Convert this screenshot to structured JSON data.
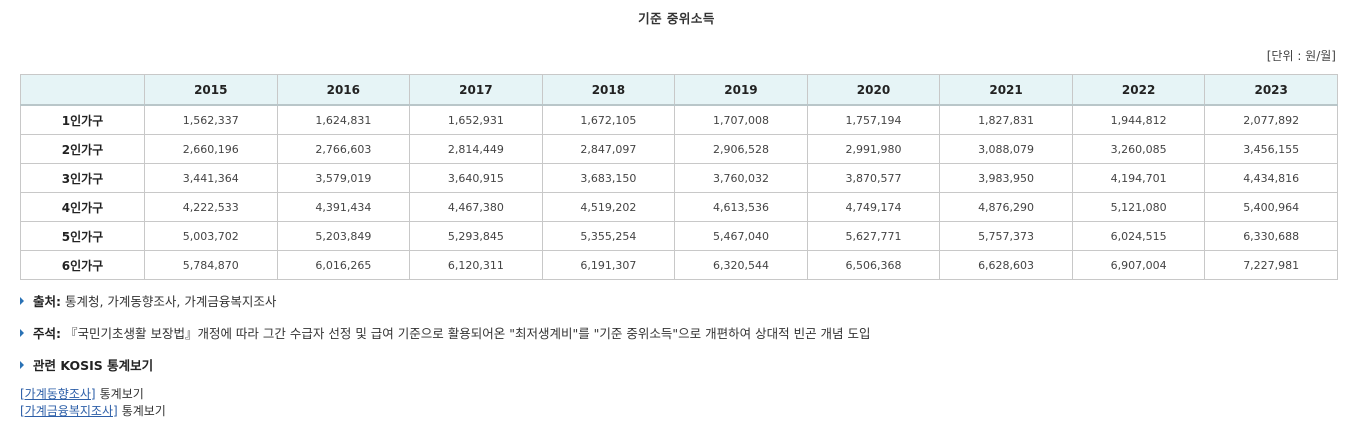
{
  "title": "기준 중위소득",
  "unit": "[단위 : 원/월]",
  "table": {
    "years": [
      "2015",
      "2016",
      "2017",
      "2018",
      "2019",
      "2020",
      "2021",
      "2022",
      "2023"
    ],
    "rows": [
      {
        "label": "1인가구",
        "values": [
          "1,562,337",
          "1,624,831",
          "1,652,931",
          "1,672,105",
          "1,707,008",
          "1,757,194",
          "1,827,831",
          "1,944,812",
          "2,077,892"
        ]
      },
      {
        "label": "2인가구",
        "values": [
          "2,660,196",
          "2,766,603",
          "2,814,449",
          "2,847,097",
          "2,906,528",
          "2,991,980",
          "3,088,079",
          "3,260,085",
          "3,456,155"
        ]
      },
      {
        "label": "3인가구",
        "values": [
          "3,441,364",
          "3,579,019",
          "3,640,915",
          "3,683,150",
          "3,760,032",
          "3,870,577",
          "3,983,950",
          "4,194,701",
          "4,434,816"
        ]
      },
      {
        "label": "4인가구",
        "values": [
          "4,222,533",
          "4,391,434",
          "4,467,380",
          "4,519,202",
          "4,613,536",
          "4,749,174",
          "4,876,290",
          "5,121,080",
          "5,400,964"
        ]
      },
      {
        "label": "5인가구",
        "values": [
          "5,003,702",
          "5,203,849",
          "5,293,845",
          "5,355,254",
          "5,467,040",
          "5,627,771",
          "5,757,373",
          "6,024,515",
          "6,330,688"
        ]
      },
      {
        "label": "6인가구",
        "values": [
          "5,784,870",
          "6,016,265",
          "6,120,311",
          "6,191,307",
          "6,320,544",
          "6,506,368",
          "6,628,603",
          "6,907,004",
          "7,227,981"
        ]
      }
    ]
  },
  "notes": {
    "source_label": "출처:",
    "source_text": " 통계청, 가계동향조사, 가계금융복지조사",
    "remark_label": "주석:",
    "remark_text": " 『국민기초생활 보장법』개정에 따라 그간 수급자 선정 및 급여 기준으로 활용되어온 \"최저생계비\"를 \"기준 중위소득\"으로 개편하여 상대적 빈곤 개념 도입",
    "related_label": "관련 KOSIS 통계보기"
  },
  "links": [
    {
      "label": "[가계동향조사]",
      "suffix": "통계보기"
    },
    {
      "label": "[가계금융복지조사]",
      "suffix": "통계보기"
    }
  ],
  "colors": {
    "header_bg": "#e6f4f6",
    "link": "#2d5fa8",
    "bullet": "#2a72b5"
  }
}
